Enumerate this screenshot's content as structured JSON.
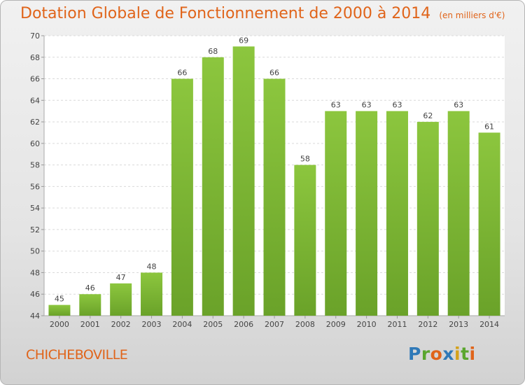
{
  "header": {
    "title": "Dotation Globale de Fonctionnement de 2000 à 2014",
    "subtitle": "(en milliers d'€)"
  },
  "footer": {
    "commune": "CHICHEBOVILLE",
    "logo_letters": [
      {
        "char": "P",
        "color": "#2f79b8"
      },
      {
        "char": "r",
        "color": "#5aa62e"
      },
      {
        "char": "o",
        "color": "#e0641a"
      },
      {
        "char": "x",
        "color": "#2f79b8"
      },
      {
        "char": "i",
        "color": "#d4a21b"
      },
      {
        "char": "t",
        "color": "#5aa62e"
      },
      {
        "char": "i",
        "color": "#e0641a"
      }
    ]
  },
  "chart_data": {
    "type": "bar",
    "categories": [
      "2000",
      "2001",
      "2002",
      "2003",
      "2004",
      "2005",
      "2006",
      "2007",
      "2008",
      "2009",
      "2010",
      "2011",
      "2012",
      "2013",
      "2014"
    ],
    "values": [
      45,
      46,
      47,
      48,
      66,
      68,
      69,
      66,
      58,
      63,
      63,
      63,
      62,
      63,
      61
    ],
    "ylim": [
      44,
      70
    ],
    "yticks": [
      44,
      46,
      48,
      50,
      52,
      54,
      56,
      58,
      60,
      62,
      64,
      66,
      68,
      70
    ],
    "grid": true,
    "bar_color": "#8cc63e",
    "bar_color_dark": "#6aa229"
  }
}
